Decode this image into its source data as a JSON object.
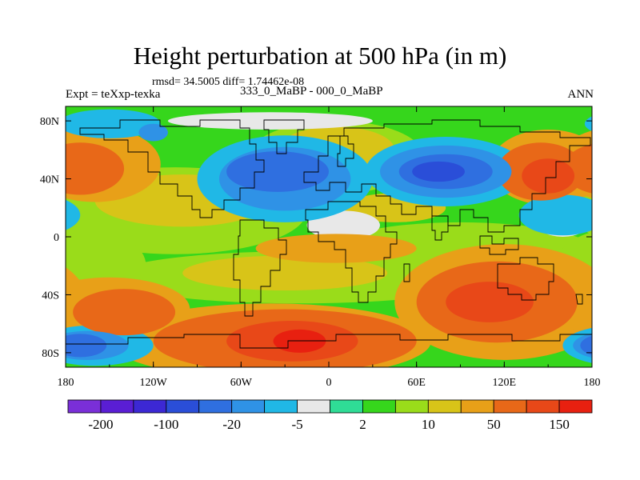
{
  "header": {
    "title": "Height perturbation at 500 hPa (in m)",
    "stats": "rmsd= 34.5005 diff= 1.74462e-08",
    "left_label": "Expt = teXxp-texka",
    "center_label": "333_0_MaBP - 000_0_MaBP",
    "right_label": "ANN"
  },
  "chart_data": {
    "type": "heatmap",
    "title": "Height perturbation at 500 hPa (in m)",
    "subtitle": "333_0_MaBP - 000_0_MaBP",
    "xlabel": "",
    "ylabel": "",
    "xlim": [
      -180,
      180
    ],
    "ylim": [
      -90,
      90
    ],
    "x_ticks": [
      {
        "value": -180,
        "label": "180"
      },
      {
        "value": -120,
        "label": "120W"
      },
      {
        "value": -60,
        "label": "60W"
      },
      {
        "value": 0,
        "label": "0"
      },
      {
        "value": 60,
        "label": "60E"
      },
      {
        "value": 120,
        "label": "120E"
      },
      {
        "value": 180,
        "label": "180"
      }
    ],
    "y_ticks": [
      {
        "value": 80,
        "label": "80N"
      },
      {
        "value": 40,
        "label": "40N"
      },
      {
        "value": 0,
        "label": "0"
      },
      {
        "value": -40,
        "label": "40S"
      },
      {
        "value": -80,
        "label": "80S"
      }
    ],
    "colorbar": {
      "colors": [
        "#7a2fd8",
        "#5a1ed4",
        "#3c28d4",
        "#2a4ed8",
        "#2f6fe0",
        "#2f92e6",
        "#20b8e6",
        "#e8e8e8",
        "#2fdc96",
        "#36d61c",
        "#9adc1a",
        "#d8c418",
        "#e8a018",
        "#e86818",
        "#e84818",
        "#e82010"
      ],
      "labels": [
        {
          "boundary": 1,
          "text": "-200"
        },
        {
          "boundary": 3,
          "text": "-100"
        },
        {
          "boundary": 5,
          "text": "-20"
        },
        {
          "boundary": 7,
          "text": "-5"
        },
        {
          "boundary": 9,
          "text": "2"
        },
        {
          "boundary": 11,
          "text": "10"
        },
        {
          "boundary": 13,
          "text": "50"
        },
        {
          "boundary": 15,
          "text": "150"
        }
      ]
    },
    "background_level": 9,
    "regions": [
      {
        "level": 10,
        "lon": -105,
        "lat": 18,
        "rlon": 90,
        "rlat": 30
      },
      {
        "level": 10,
        "lon": 90,
        "lat": -12,
        "rlon": 95,
        "rlat": 22
      },
      {
        "level": 10,
        "lon": -20,
        "lat": -28,
        "rlon": 130,
        "rlat": 18
      },
      {
        "level": 10,
        "lon": 5,
        "lat": 55,
        "rlon": 60,
        "rlat": 25
      },
      {
        "level": 10,
        "lon": -165,
        "lat": -20,
        "rlon": 40,
        "rlat": 25
      },
      {
        "level": 11,
        "lon": -100,
        "lat": 25,
        "rlon": 60,
        "rlat": 18
      },
      {
        "level": 11,
        "lon": 5,
        "lat": 60,
        "rlon": 40,
        "rlat": 16
      },
      {
        "level": 11,
        "lon": 45,
        "lat": 20,
        "rlon": 35,
        "rlat": 10
      },
      {
        "level": 11,
        "lon": -30,
        "lat": -25,
        "rlon": 70,
        "rlat": 12
      },
      {
        "level": 12,
        "lon": 120,
        "lat": -45,
        "rlon": 75,
        "rlat": 40
      },
      {
        "level": 12,
        "lon": -40,
        "lat": -72,
        "rlon": 110,
        "rlat": 26
      },
      {
        "level": 12,
        "lon": 150,
        "lat": 48,
        "rlon": 40,
        "rlat": 26
      },
      {
        "level": 12,
        "lon": -160,
        "lat": 50,
        "rlon": 45,
        "rlat": 26
      },
      {
        "level": 12,
        "lon": -150,
        "lat": -50,
        "rlon": 55,
        "rlat": 22
      },
      {
        "level": 12,
        "lon": 5,
        "lat": -8,
        "rlon": 55,
        "rlat": 10
      },
      {
        "level": 13,
        "lon": 115,
        "lat": -45,
        "rlon": 55,
        "rlat": 28
      },
      {
        "level": 13,
        "lon": -30,
        "lat": -72,
        "rlon": 90,
        "rlat": 22
      },
      {
        "level": 13,
        "lon": 145,
        "lat": 45,
        "rlon": 30,
        "rlat": 20
      },
      {
        "level": 13,
        "lon": -170,
        "lat": 47,
        "rlon": 30,
        "rlat": 18
      },
      {
        "level": 13,
        "lon": -140,
        "lat": -52,
        "rlon": 35,
        "rlat": 16
      },
      {
        "level": 14,
        "lon": 110,
        "lat": -45,
        "rlon": 30,
        "rlat": 14
      },
      {
        "level": 14,
        "lon": -25,
        "lat": -72,
        "rlon": 45,
        "rlat": 14
      },
      {
        "level": 14,
        "lon": 150,
        "lat": 42,
        "rlon": 18,
        "rlat": 12
      },
      {
        "level": 15,
        "lon": -20,
        "lat": -72,
        "rlon": 18,
        "rlat": 8
      },
      {
        "level": 6,
        "lon": -30,
        "lat": 40,
        "rlon": 60,
        "rlat": 30
      },
      {
        "level": 6,
        "lon": 80,
        "lat": 45,
        "rlon": 55,
        "rlat": 24
      },
      {
        "level": 6,
        "lon": -150,
        "lat": 78,
        "rlon": 35,
        "rlat": 10
      },
      {
        "level": 6,
        "lon": 160,
        "lat": 15,
        "rlon": 30,
        "rlat": 14
      },
      {
        "level": 6,
        "lon": -160,
        "lat": -75,
        "rlon": 40,
        "rlat": 14
      },
      {
        "level": 5,
        "lon": -30,
        "lat": 40,
        "rlon": 45,
        "rlat": 22
      },
      {
        "level": 5,
        "lon": 80,
        "lat": 45,
        "rlon": 45,
        "rlat": 18
      },
      {
        "level": 5,
        "lon": -165,
        "lat": -75,
        "rlon": 28,
        "rlat": 10
      },
      {
        "level": 4,
        "lon": -35,
        "lat": 45,
        "rlon": 35,
        "rlat": 14
      },
      {
        "level": 4,
        "lon": 80,
        "lat": 45,
        "rlon": 32,
        "rlat": 12
      },
      {
        "level": 4,
        "lon": -170,
        "lat": -75,
        "rlon": 18,
        "rlat": 8
      },
      {
        "level": 3,
        "lon": 75,
        "lat": 45,
        "rlon": 18,
        "rlat": 7
      },
      {
        "level": 5,
        "lon": -120,
        "lat": 72,
        "rlon": 10,
        "rlat": 6
      },
      {
        "level": 7,
        "lon": 10,
        "lat": 8,
        "rlon": 25,
        "rlat": 10
      },
      {
        "level": 7,
        "lon": -40,
        "lat": 80,
        "rlon": 70,
        "rlat": 6
      },
      {
        "level": 7,
        "lon": 160,
        "lat": 10,
        "rlon": 18,
        "rlat": 10
      }
    ]
  }
}
